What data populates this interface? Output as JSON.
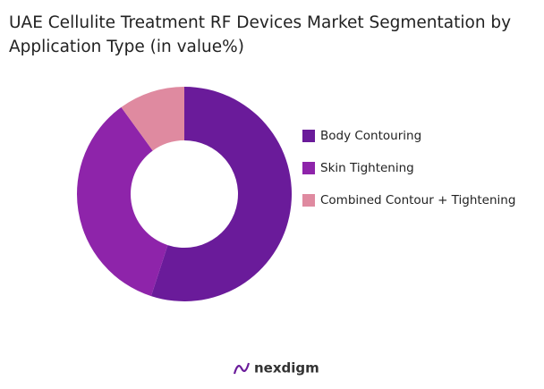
{
  "chart_data": {
    "type": "donut",
    "title": "UAE Cellulite Treatment RF Devices Market Segmentation by Application Type (in value%)",
    "categories": [
      "Body Contouring",
      "Skin Tightening",
      "Combined Contour + Tightening"
    ],
    "values": [
      55,
      35,
      10
    ],
    "colors": [
      "#6a1b9a",
      "#8e24aa",
      "#df8aa0"
    ],
    "legend": "right"
  },
  "footer": {
    "logo": "nexdigm"
  }
}
